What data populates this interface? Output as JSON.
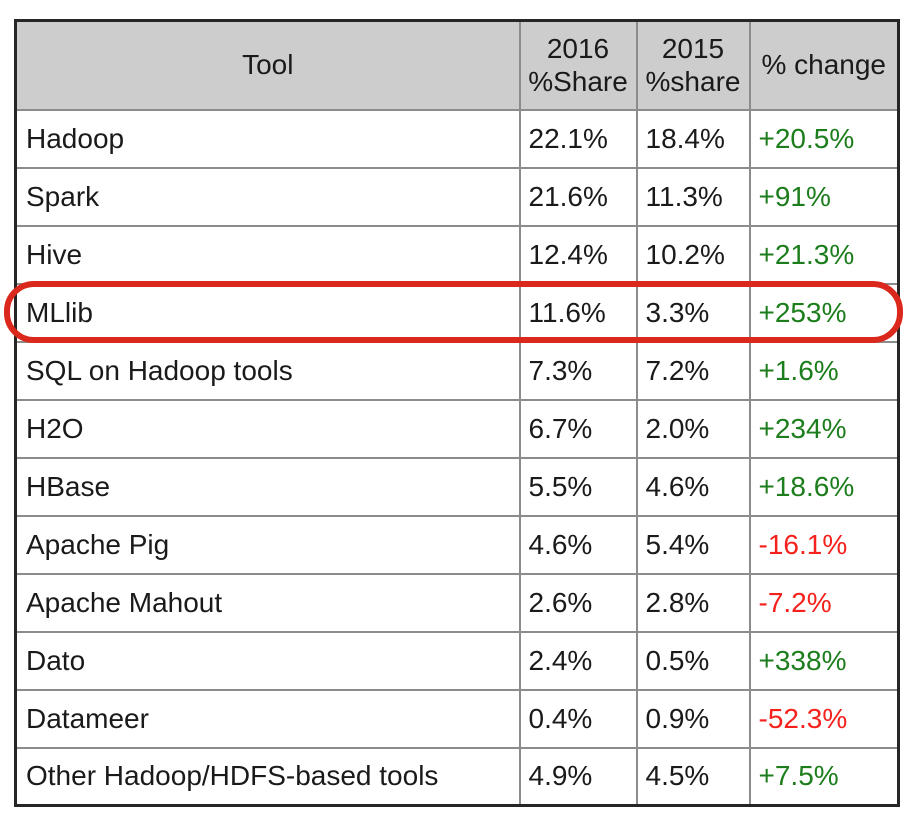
{
  "colors": {
    "header_bg": "#cdcdcd",
    "outer_border": "#262626",
    "grid_line": "#8c8c8c",
    "positive": "#1c7d1c",
    "negative": "#f5211d",
    "highlight": "#da291c",
    "text": "#1a1a1a"
  },
  "header": {
    "tool": "Tool",
    "col2016_line1": "2016",
    "col2016_line2": "%Share",
    "col2015_line1": "2015",
    "col2015_line2": "%share",
    "change": "% change"
  },
  "annotation": {
    "type": "highlight-ellipse",
    "target_row": "MLlib"
  },
  "chart_data": {
    "type": "table",
    "columns": [
      "Tool",
      "2016 %Share",
      "2015 %share",
      "% change"
    ],
    "rows": [
      {
        "tool": "Hadoop",
        "share2016": "22.1%",
        "share2015": "18.4%",
        "change": "+20.5%",
        "dir": "up"
      },
      {
        "tool": "Spark",
        "share2016": "21.6%",
        "share2015": "11.3%",
        "change": "+91%",
        "dir": "up"
      },
      {
        "tool": "Hive",
        "share2016": "12.4%",
        "share2015": "10.2%",
        "change": "+21.3%",
        "dir": "up"
      },
      {
        "tool": "MLlib",
        "share2016": "11.6%",
        "share2015": "3.3%",
        "change": "+253%",
        "dir": "up"
      },
      {
        "tool": "SQL on Hadoop tools",
        "share2016": "7.3%",
        "share2015": "7.2%",
        "change": "+1.6%",
        "dir": "up"
      },
      {
        "tool": "H2O",
        "share2016": "6.7%",
        "share2015": "2.0%",
        "change": "+234%",
        "dir": "up"
      },
      {
        "tool": "HBase",
        "share2016": "5.5%",
        "share2015": "4.6%",
        "change": "+18.6%",
        "dir": "up"
      },
      {
        "tool": "Apache Pig",
        "share2016": "4.6%",
        "share2015": "5.4%",
        "change": "-16.1%",
        "dir": "down"
      },
      {
        "tool": "Apache Mahout",
        "share2016": "2.6%",
        "share2015": "2.8%",
        "change": "-7.2%",
        "dir": "down"
      },
      {
        "tool": "Dato",
        "share2016": "2.4%",
        "share2015": "0.5%",
        "change": "+338%",
        "dir": "up"
      },
      {
        "tool": "Datameer",
        "share2016": "0.4%",
        "share2015": "0.9%",
        "change": "-52.3%",
        "dir": "down"
      },
      {
        "tool": "Other Hadoop/HDFS-based tools",
        "share2016": "4.9%",
        "share2015": "4.5%",
        "change": "+7.5%",
        "dir": "up"
      }
    ]
  }
}
